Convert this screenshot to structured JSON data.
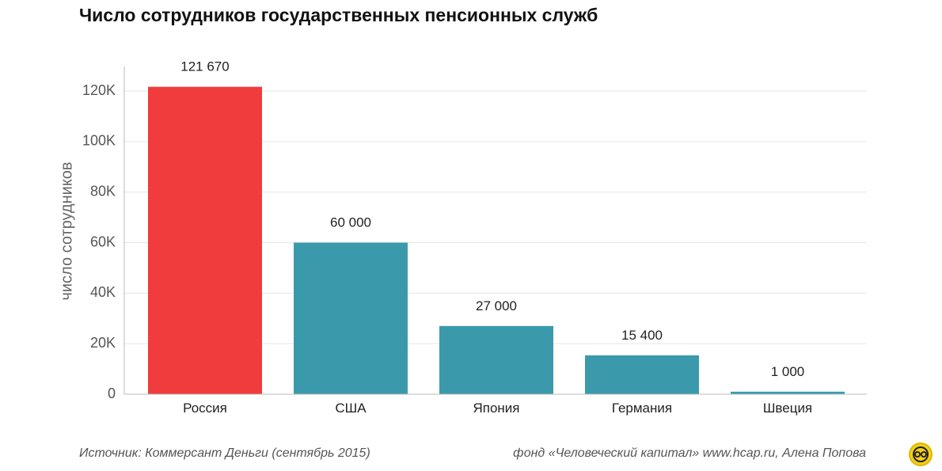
{
  "title": "Число сотрудников государственных пенсионных служб",
  "footer": {
    "source": "Источник: Коммерсант Деньги (сентябрь 2015)",
    "credit": "фонд «Человеческий капитал» www.hcap.ru, Алена Попова"
  },
  "logo": {
    "icon": "hcap-logo-icon"
  },
  "chart_data": {
    "type": "bar",
    "title": "Число сотрудников государственных пенсионных служб",
    "xlabel": "",
    "ylabel": "число сотрудников",
    "categories": [
      "Россия",
      "США",
      "Япония",
      "Германия",
      "Швеция"
    ],
    "values": [
      121670,
      60000,
      27000,
      15400,
      1000
    ],
    "data_labels": [
      "121 670",
      "60 000",
      "27 000",
      "15 400",
      "1 000"
    ],
    "colors": [
      "#f03c3c",
      "#3a9aac",
      "#3a9aac",
      "#3a9aac",
      "#3a9aac"
    ],
    "ylim": [
      0,
      130000
    ],
    "yticks": [
      0,
      20000,
      40000,
      60000,
      80000,
      100000,
      120000
    ],
    "ytick_labels": [
      "0",
      "20K",
      "40K",
      "60K",
      "80K",
      "100K",
      "120K"
    ],
    "grid": true,
    "legend": "none"
  }
}
